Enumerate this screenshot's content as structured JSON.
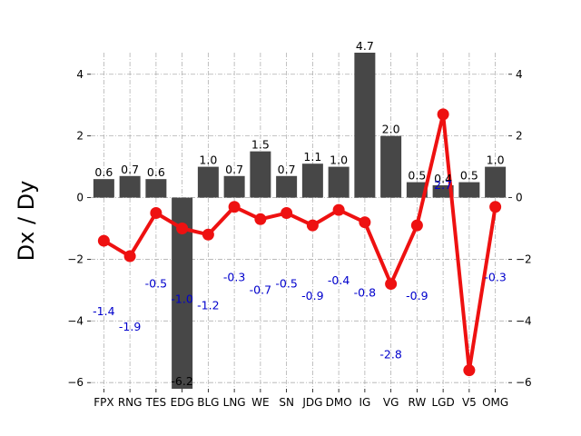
{
  "chart_data": {
    "type": "bar",
    "ylabel": "Dx / Dy",
    "xlabel": "",
    "title": "",
    "categories": [
      "FPX",
      "RNG",
      "TES",
      "EDG",
      "BLG",
      "LNG",
      "WE",
      "SN",
      "JDG",
      "DMO",
      "IG",
      "VG",
      "RW",
      "LGD",
      "V5",
      "OMG"
    ],
    "series": [
      {
        "type": "bar",
        "color": "#474747",
        "values": [
          0.6,
          0.7,
          0.6,
          -6.2,
          1.0,
          0.7,
          1.5,
          0.7,
          1.1,
          1.0,
          4.7,
          2.0,
          0.5,
          0.4,
          0.5,
          1.0
        ],
        "labels": [
          "0.6",
          "0.7",
          "0.6",
          "-6.2",
          "1.0",
          "0.7",
          "1.5",
          "0.7",
          "1.1",
          "1.0",
          "4.7",
          "2.0",
          "0.5",
          "0.4",
          "0.5",
          "1.0"
        ]
      },
      {
        "type": "line",
        "color": "#ee1111",
        "label_color": "#0000cc",
        "values": [
          -1.4,
          -1.9,
          -0.5,
          -1.0,
          -1.2,
          -0.3,
          -0.7,
          -0.5,
          -0.9,
          -0.4,
          -0.8,
          -2.8,
          -0.9,
          2.7,
          -5.6,
          -0.3
        ],
        "labels": [
          "-1.4",
          "-1.9",
          "-0.5",
          "-1.0",
          "-1.2",
          "-0.3",
          "-0.7",
          "-0.5",
          "-0.9",
          "-0.4",
          "-0.8",
          "-2.8",
          "-0.9",
          "2.7",
          "-5.6",
          "-0.3"
        ]
      }
    ],
    "ylim": [
      -6.2,
      4.7
    ],
    "yticks": [
      "−6",
      "−4",
      "−2",
      "0",
      "2",
      "4"
    ],
    "ytick_values": [
      -6,
      -4,
      -2,
      0,
      2,
      4
    ],
    "grid": true,
    "right_axis_ticks": true
  }
}
